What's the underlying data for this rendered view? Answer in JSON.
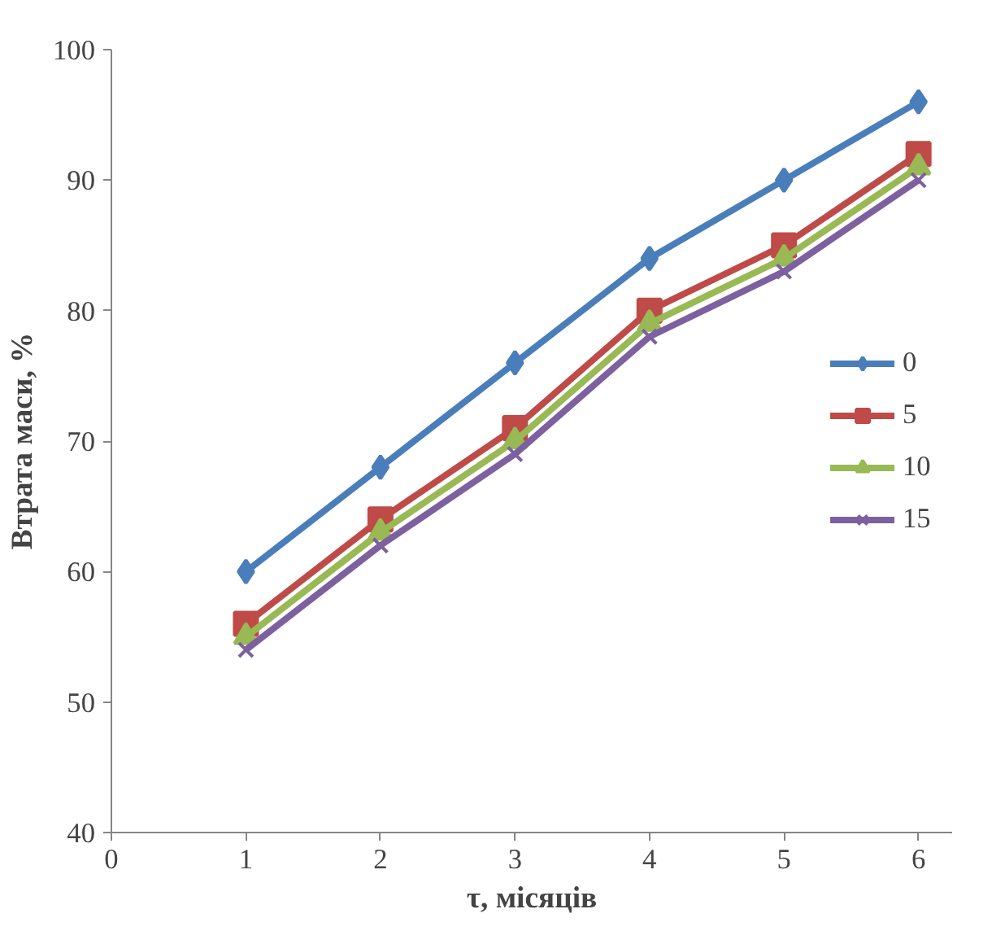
{
  "chart_data": {
    "type": "line",
    "xlabel": "τ, місяців",
    "ylabel": "Втрата маси, %",
    "x": [
      1,
      2,
      3,
      4,
      5,
      6
    ],
    "series": [
      {
        "name": "0",
        "color": "#4a7ebb",
        "marker": "diamond",
        "values": [
          60,
          68,
          76,
          84,
          90,
          96
        ]
      },
      {
        "name": "5",
        "color": "#be4b48",
        "marker": "square",
        "values": [
          56,
          64,
          71,
          80,
          85,
          92
        ]
      },
      {
        "name": "10",
        "color": "#98b954",
        "marker": "triangle",
        "values": [
          55,
          63,
          70,
          79,
          84,
          91
        ]
      },
      {
        "name": "15",
        "color": "#7d60a0",
        "marker": "cross",
        "values": [
          54,
          62,
          69,
          78,
          83,
          90
        ]
      }
    ],
    "xlim": [
      0,
      6.25
    ],
    "xticks": [
      0,
      1,
      2,
      3,
      4,
      5,
      6
    ],
    "ylim": [
      40,
      100
    ],
    "yticks": [
      40,
      50,
      60,
      70,
      80,
      90,
      100
    ],
    "grid": false,
    "legend": "right",
    "line_style": "solid"
  }
}
